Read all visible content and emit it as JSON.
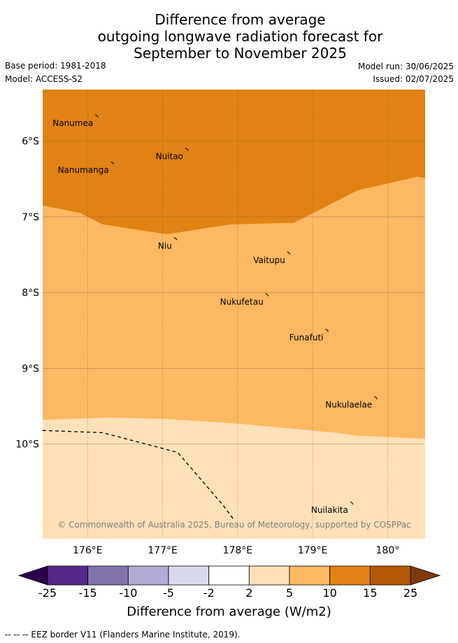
{
  "title": {
    "line1": "Difference from average",
    "line2": "outgoing longwave radiation forecast for",
    "line3": "September to November 2025"
  },
  "meta": {
    "base_period": "Base period: 1981-2018",
    "model": "Model: ACCESS-S2",
    "model_run": "Model run: 30/06/2025",
    "issued": "Issued: 02/07/2025"
  },
  "map": {
    "lon_range": [
      175.4,
      180.5
    ],
    "lat_range": [
      -11.25,
      -5.32
    ],
    "lat_labels": [
      {
        "value": -6,
        "text": "6°S"
      },
      {
        "value": -7,
        "text": "7°S"
      },
      {
        "value": -8,
        "text": "8°S"
      },
      {
        "value": -9,
        "text": "9°S"
      },
      {
        "value": -10,
        "text": "10°S"
      }
    ],
    "lon_labels": [
      {
        "value": 176,
        "text": "176°E"
      },
      {
        "value": 177,
        "text": "177°E"
      },
      {
        "value": 178,
        "text": "178°E"
      },
      {
        "value": 179,
        "text": "179°E"
      },
      {
        "value": 180,
        "text": "180°"
      }
    ],
    "contour_bands": [
      {
        "range": "10 to 15",
        "color": "#e08214",
        "boundary_south": [
          [
            175.4,
            -6.85
          ],
          [
            175.9,
            -6.95
          ],
          [
            176.2,
            -7.1
          ],
          [
            177.05,
            -7.23
          ],
          [
            177.9,
            -7.1
          ],
          [
            178.75,
            -7.08
          ],
          [
            179.6,
            -6.65
          ],
          [
            180.4,
            -6.47
          ],
          [
            180.5,
            -6.49
          ]
        ]
      },
      {
        "range": "5 to 10",
        "color": "#fdb863",
        "boundary_south": [
          [
            175.4,
            -9.68
          ],
          [
            176.3,
            -9.65
          ],
          [
            177.05,
            -9.67
          ],
          [
            178.0,
            -9.73
          ],
          [
            179.3,
            -9.85
          ],
          [
            179.6,
            -9.89
          ],
          [
            180.5,
            -9.93
          ]
        ]
      },
      {
        "range": "2 to 5",
        "color": "#fee0b6"
      }
    ],
    "places": [
      {
        "name": "Nanumea",
        "lon": 176.12,
        "lat": -5.67
      },
      {
        "name": "Nuitao",
        "lon": 177.32,
        "lat": -6.11
      },
      {
        "name": "Nanumanga",
        "lon": 176.33,
        "lat": -6.29
      },
      {
        "name": "Niu",
        "lon": 177.17,
        "lat": -7.29
      },
      {
        "name": "Vaitupu",
        "lon": 178.68,
        "lat": -7.48
      },
      {
        "name": "Nukufetau",
        "lon": 178.39,
        "lat": -8.03
      },
      {
        "name": "Funafuti",
        "lon": 179.19,
        "lat": -8.5
      },
      {
        "name": "Nukulaelae",
        "lon": 179.84,
        "lat": -9.39
      },
      {
        "name": "Nuilakita",
        "lon": 179.52,
        "lat": -10.78
      }
    ],
    "eez_border": [
      [
        175.4,
        -9.82
      ],
      [
        176.2,
        -9.85
      ],
      [
        177.2,
        -10.11
      ],
      [
        177.8,
        -10.8
      ],
      [
        177.95,
        -11.0
      ]
    ],
    "copyright": "© Commonwealth of Australia 2025, Bureau of Meteorology, supported by COSPPac"
  },
  "colorbar": {
    "ticks": [
      "-25",
      "-15",
      "-10",
      "-5",
      "-2",
      "2",
      "5",
      "10",
      "15",
      "25"
    ],
    "colors": [
      "#542788",
      "#8073ac",
      "#b2abd2",
      "#d8daeb",
      "#ffffff",
      "#fee0b6",
      "#fdb863",
      "#e08214",
      "#b35806"
    ],
    "under_color": "#2d004b",
    "over_color": "#7f3b08",
    "label": "Difference from average (W/m2)"
  },
  "footer": "--  --  -- EEZ border V11 (Flanders Marine Institute, 2019)."
}
